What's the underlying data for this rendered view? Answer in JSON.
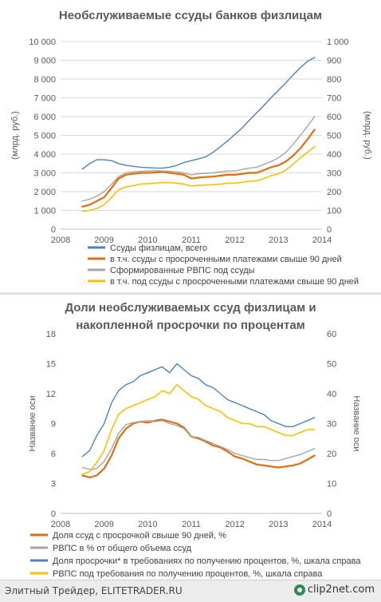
{
  "chart_data": [
    {
      "type": "line",
      "title": "Необслуживаемые ссуды банков физлицам",
      "ylabel_left": "(млрд. руб.)",
      "ylabel_right": "(млрд. руб.)",
      "xlim": [
        2008,
        2014
      ],
      "x_ticks": [
        "2008",
        "2009",
        "2010",
        "2011",
        "2012",
        "2013",
        "2014"
      ],
      "ylim_left": [
        0,
        10000
      ],
      "y_ticks_left": [
        "0",
        "1 000",
        "2 000",
        "3 000",
        "4 000",
        "5 000",
        "6 000",
        "7 000",
        "8 000",
        "9 000",
        "10 000"
      ],
      "ylim_right": [
        0,
        1000
      ],
      "y_ticks_right": [
        "0",
        "100",
        "200",
        "300",
        "400",
        "500",
        "600",
        "700",
        "800",
        "900",
        "1 000"
      ],
      "grid": "horizontal",
      "legend_position": "bottom",
      "series": [
        {
          "name": "Ссуды физлицам, всего",
          "axis": "left",
          "color": "#4f81bd",
          "x": [
            2008.5,
            2008.67,
            2008.83,
            2009.0,
            2009.17,
            2009.33,
            2009.5,
            2009.67,
            2009.83,
            2010.0,
            2010.17,
            2010.33,
            2010.5,
            2010.67,
            2010.83,
            2011.0,
            2011.17,
            2011.33,
            2011.5,
            2011.67,
            2011.83,
            2012.0,
            2012.17,
            2012.33,
            2012.5,
            2012.67,
            2012.83,
            2013.0,
            2013.17,
            2013.33,
            2013.5,
            2013.67,
            2013.83
          ],
          "y": [
            3200,
            3500,
            3700,
            3700,
            3650,
            3500,
            3400,
            3350,
            3300,
            3280,
            3260,
            3250,
            3300,
            3400,
            3550,
            3650,
            3750,
            3850,
            4100,
            4400,
            4700,
            5050,
            5400,
            5800,
            6200,
            6600,
            7000,
            7400,
            7800,
            8200,
            8600,
            8950,
            9150
          ]
        },
        {
          "name": "в т.ч. ссуды с просроченными платежами свыше 90 дней",
          "axis": "right",
          "color": "#e46c0a",
          "x": [
            2008.5,
            2008.67,
            2008.83,
            2009.0,
            2009.17,
            2009.33,
            2009.5,
            2009.67,
            2009.83,
            2010.0,
            2010.17,
            2010.33,
            2010.5,
            2010.67,
            2010.83,
            2011.0,
            2011.17,
            2011.33,
            2011.5,
            2011.67,
            2011.83,
            2012.0,
            2012.17,
            2012.33,
            2012.5,
            2012.67,
            2012.83,
            2013.0,
            2013.17,
            2013.33,
            2013.5,
            2013.67,
            2013.83
          ],
          "y": [
            120,
            130,
            150,
            170,
            220,
            270,
            290,
            295,
            300,
            300,
            302,
            305,
            300,
            295,
            290,
            270,
            275,
            278,
            280,
            285,
            290,
            290,
            295,
            300,
            300,
            315,
            330,
            340,
            360,
            390,
            430,
            480,
            530
          ]
        },
        {
          "name": "Сформированные РВПС под ссуды",
          "axis": "right",
          "color": "#a5a5a5",
          "x": [
            2008.5,
            2008.67,
            2008.83,
            2009.0,
            2009.17,
            2009.33,
            2009.5,
            2009.67,
            2009.83,
            2010.0,
            2010.17,
            2010.33,
            2010.5,
            2010.67,
            2010.83,
            2011.0,
            2011.17,
            2011.33,
            2011.5,
            2011.67,
            2011.83,
            2012.0,
            2012.17,
            2012.33,
            2012.5,
            2012.67,
            2012.83,
            2013.0,
            2013.17,
            2013.33,
            2013.5,
            2013.67,
            2013.83
          ],
          "y": [
            150,
            160,
            175,
            200,
            240,
            280,
            300,
            305,
            308,
            310,
            312,
            310,
            308,
            305,
            300,
            290,
            295,
            298,
            300,
            305,
            310,
            310,
            318,
            325,
            330,
            345,
            360,
            380,
            410,
            450,
            500,
            550,
            600
          ]
        },
        {
          "name": "в т.ч. под ссуды с просроченными платежами свыше 90 дней",
          "axis": "right",
          "color": "#ffc000",
          "x": [
            2008.5,
            2008.67,
            2008.83,
            2009.0,
            2009.17,
            2009.33,
            2009.5,
            2009.67,
            2009.83,
            2010.0,
            2010.17,
            2010.33,
            2010.5,
            2010.67,
            2010.83,
            2011.0,
            2011.17,
            2011.33,
            2011.5,
            2011.67,
            2011.83,
            2012.0,
            2012.17,
            2012.33,
            2012.5,
            2012.67,
            2012.83,
            2013.0,
            2013.17,
            2013.33,
            2013.5,
            2013.67,
            2013.83
          ],
          "y": [
            95,
            100,
            110,
            130,
            170,
            210,
            225,
            232,
            240,
            242,
            245,
            248,
            248,
            245,
            240,
            230,
            233,
            235,
            237,
            240,
            245,
            245,
            250,
            255,
            258,
            270,
            285,
            295,
            315,
            345,
            380,
            410,
            440
          ]
        }
      ]
    },
    {
      "type": "line",
      "title": "Доли необслуживаемых ссуд физлицам и накопленной просрочки по процентам",
      "title_lines": [
        "Доли необслуживаемых ссуд физлицам и",
        "накопленной просрочки по процентам"
      ],
      "ylabel_left": "Название оси",
      "ylabel_right": "Название оси",
      "xlim": [
        2008,
        2014
      ],
      "x_ticks": [
        "2008",
        "2009",
        "2010",
        "2011",
        "2012",
        "2013",
        "2014"
      ],
      "ylim_left": [
        0,
        18
      ],
      "y_ticks_left": [
        "0",
        "3",
        "6",
        "9",
        "12",
        "15",
        "18"
      ],
      "ylim_right": [
        0,
        60
      ],
      "y_ticks_right": [
        "0",
        "10",
        "20",
        "30",
        "40",
        "50",
        "60"
      ],
      "grid": "none",
      "legend_position": "bottom",
      "series": [
        {
          "name": "Доля ссуд с просрочкой свыше 90 дней, %",
          "axis": "left",
          "color": "#e46c0a",
          "x": [
            2008.5,
            2008.67,
            2008.83,
            2009.0,
            2009.17,
            2009.33,
            2009.5,
            2009.67,
            2009.83,
            2010.0,
            2010.17,
            2010.33,
            2010.5,
            2010.67,
            2010.83,
            2011.0,
            2011.17,
            2011.33,
            2011.5,
            2011.67,
            2011.83,
            2012.0,
            2012.17,
            2012.33,
            2012.5,
            2012.67,
            2012.83,
            2013.0,
            2013.17,
            2013.33,
            2013.5,
            2013.67,
            2013.83
          ],
          "y": [
            3.8,
            3.6,
            3.8,
            4.5,
            5.8,
            7.5,
            8.5,
            9.0,
            9.2,
            9.1,
            9.3,
            9.4,
            9.2,
            9.0,
            8.6,
            7.7,
            7.5,
            7.2,
            6.8,
            6.6,
            6.2,
            5.7,
            5.5,
            5.2,
            4.9,
            4.8,
            4.7,
            4.6,
            4.7,
            4.8,
            5.0,
            5.4,
            5.8
          ]
        },
        {
          "name": "РВПС в % от общего объема ссуд",
          "axis": "left",
          "color": "#a5a5a5",
          "x": [
            2008.5,
            2008.67,
            2008.83,
            2009.0,
            2009.17,
            2009.33,
            2009.5,
            2009.67,
            2009.83,
            2010.0,
            2010.17,
            2010.33,
            2010.5,
            2010.67,
            2010.83,
            2011.0,
            2011.17,
            2011.33,
            2011.5,
            2011.67,
            2011.83,
            2012.0,
            2012.17,
            2012.33,
            2012.5,
            2012.67,
            2012.83,
            2013.0,
            2013.17,
            2013.33,
            2013.5,
            2013.67,
            2013.83
          ],
          "y": [
            4.6,
            4.4,
            4.5,
            5.2,
            6.5,
            8.0,
            8.9,
            9.1,
            9.2,
            9.3,
            9.2,
            9.3,
            9.0,
            8.8,
            8.5,
            7.7,
            7.6,
            7.3,
            7.0,
            6.7,
            6.4,
            6.0,
            5.8,
            5.6,
            5.4,
            5.4,
            5.3,
            5.3,
            5.5,
            5.7,
            5.9,
            6.2,
            6.5
          ]
        },
        {
          "name": "Доля просрочки* в требованиях по получению процентов, %, шкала справа",
          "axis": "right",
          "color": "#4f81bd",
          "x": [
            2008.5,
            2008.67,
            2008.83,
            2009.0,
            2009.17,
            2009.33,
            2009.5,
            2009.67,
            2009.83,
            2010.0,
            2010.17,
            2010.33,
            2010.5,
            2010.67,
            2010.83,
            2011.0,
            2011.17,
            2011.33,
            2011.5,
            2011.67,
            2011.83,
            2012.0,
            2012.17,
            2012.33,
            2012.5,
            2012.67,
            2012.83,
            2013.0,
            2013.17,
            2013.33,
            2013.5,
            2013.67,
            2013.83
          ],
          "y": [
            19,
            21,
            26,
            30,
            37,
            41,
            43,
            44,
            46,
            47,
            48,
            49,
            47,
            50,
            48,
            46,
            45,
            43,
            42,
            40,
            38,
            37,
            36,
            35,
            34,
            33,
            31,
            30,
            29,
            29,
            30,
            31,
            32
          ]
        },
        {
          "name": "РВПС под требования по получению процентов, %, шкала справа",
          "axis": "right",
          "color": "#ffc000",
          "x": [
            2008.5,
            2008.67,
            2008.83,
            2009.0,
            2009.17,
            2009.33,
            2009.5,
            2009.67,
            2009.83,
            2010.0,
            2010.17,
            2010.33,
            2010.5,
            2010.67,
            2010.83,
            2011.0,
            2011.17,
            2011.33,
            2011.5,
            2011.67,
            2011.83,
            2012.0,
            2012.17,
            2012.33,
            2012.5,
            2012.67,
            2012.83,
            2013.0,
            2013.17,
            2013.33,
            2013.5,
            2013.67,
            2013.83
          ],
          "y": [
            13,
            14,
            17,
            21,
            28,
            33,
            35,
            36,
            37,
            38,
            39,
            41,
            40,
            43,
            41,
            39,
            38,
            36,
            35,
            34,
            32,
            31,
            30,
            30,
            29,
            29,
            28,
            27,
            26,
            26,
            27,
            28,
            28
          ]
        }
      ]
    }
  ],
  "footer": {
    "left_text": "Элитный Трейдер, ELITETRADER.RU",
    "right_text": "clip2net.com"
  }
}
